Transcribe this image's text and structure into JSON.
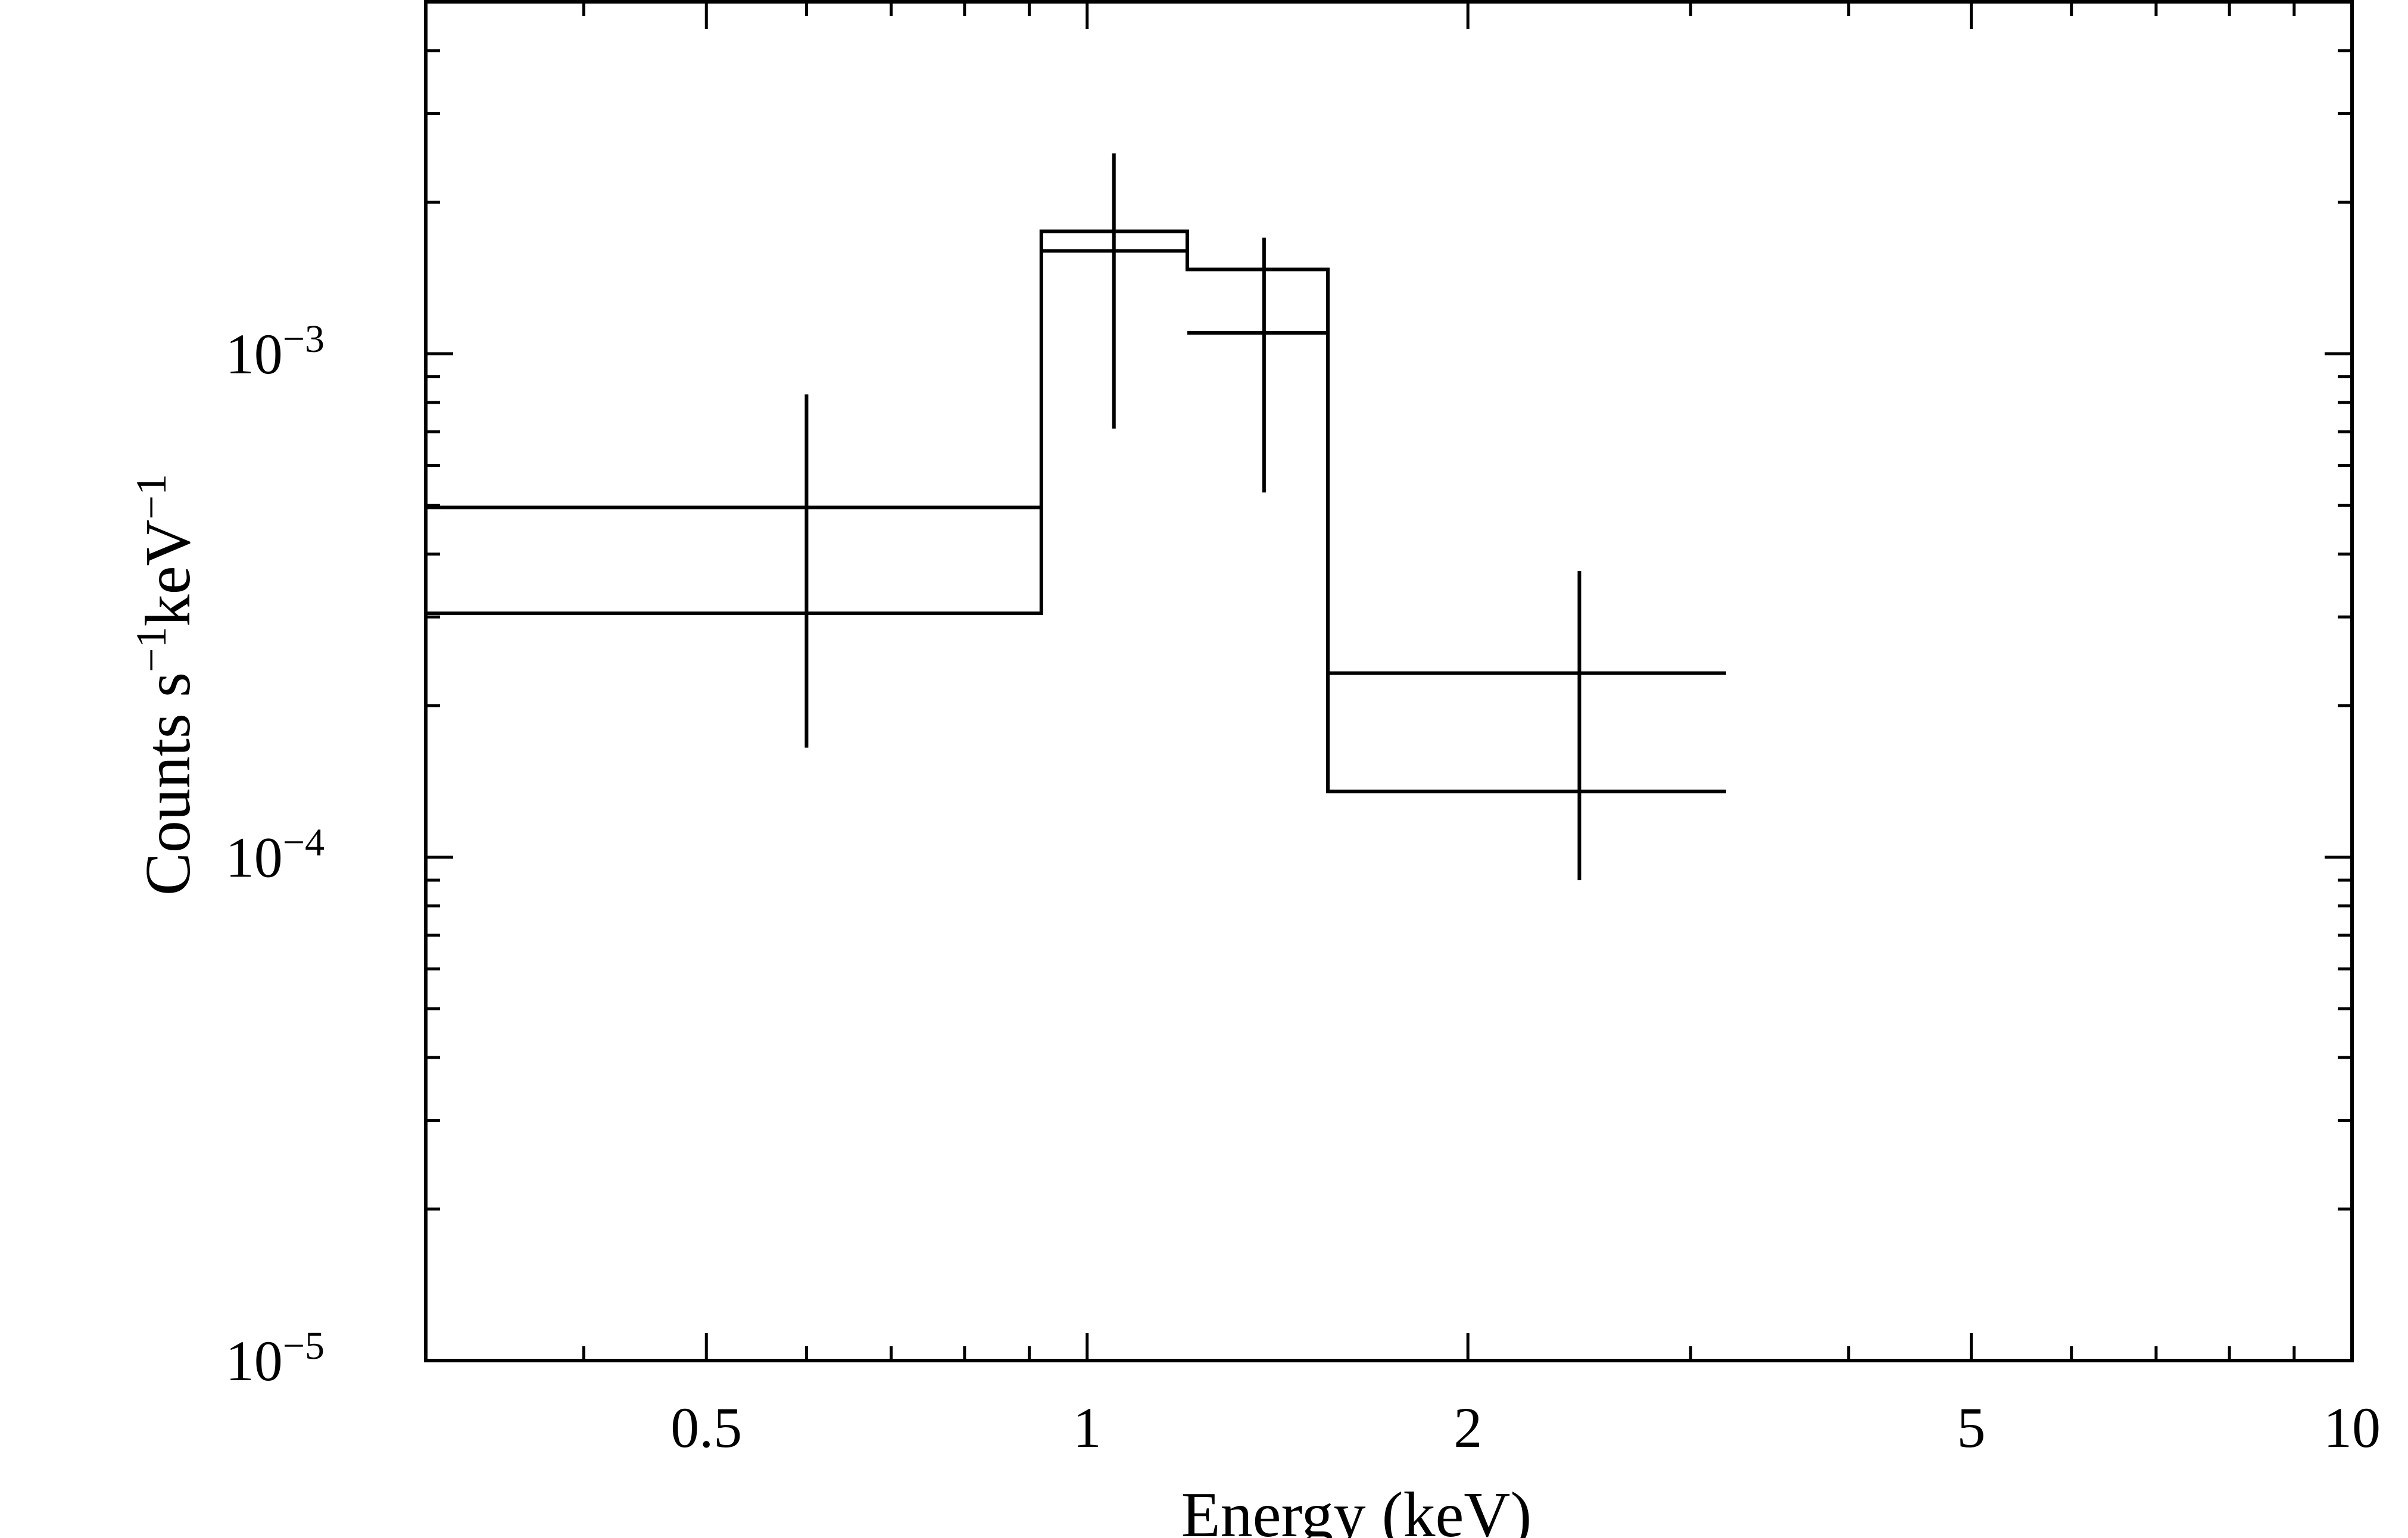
{
  "chart_data": {
    "type": "line",
    "xlabel": "Energy (keV)",
    "ylabel": {
      "parts": [
        {
          "t": "Counts s",
          "sup": false
        },
        {
          "t": "−1",
          "sup": true
        },
        {
          "t": "keV",
          "sup": false
        },
        {
          "t": "−1",
          "sup": true
        }
      ]
    },
    "xscale": "log",
    "yscale": "log",
    "xlim": [
      0.3,
      10
    ],
    "ylim": [
      1e-05,
      0.005
    ],
    "xticks": [
      {
        "value": 0.5,
        "label": "0.5"
      },
      {
        "value": 1,
        "label": "1"
      },
      {
        "value": 2,
        "label": "2"
      },
      {
        "value": 5,
        "label": "5"
      },
      {
        "value": 10,
        "label": "10"
      }
    ],
    "yticks": [
      {
        "value": 0.001,
        "base": "10",
        "exp": "−3"
      },
      {
        "value": 0.0001,
        "base": "10",
        "exp": "−4"
      },
      {
        "value": 1e-05,
        "base": "10",
        "exp": "−5"
      }
    ],
    "data_points": [
      {
        "x": 0.6,
        "x_low": 0.3,
        "x_high": 0.92,
        "y": 0.000495,
        "y_low": 0.000165,
        "y_high": 0.00083
      },
      {
        "x": 1.05,
        "x_low": 0.92,
        "x_high": 1.2,
        "y": 0.0016,
        "y_low": 0.00071,
        "y_high": 0.0025
      },
      {
        "x": 1.38,
        "x_low": 1.2,
        "x_high": 1.55,
        "y": 0.0011,
        "y_low": 0.00053,
        "y_high": 0.0017
      },
      {
        "x": 2.45,
        "x_low": 1.55,
        "x_high": 3.2,
        "y": 0.000232,
        "y_low": 9e-05,
        "y_high": 0.00037
      }
    ],
    "model": [
      {
        "x_low": 0.3,
        "x_high": 0.92,
        "y": 0.000305
      },
      {
        "x_low": 0.92,
        "x_high": 1.2,
        "y": 0.00175
      },
      {
        "x_low": 1.2,
        "x_high": 1.55,
        "y": 0.00147
      },
      {
        "x_low": 1.55,
        "x_high": 3.2,
        "y": 0.000135
      }
    ],
    "grid": false,
    "legend": "none"
  }
}
